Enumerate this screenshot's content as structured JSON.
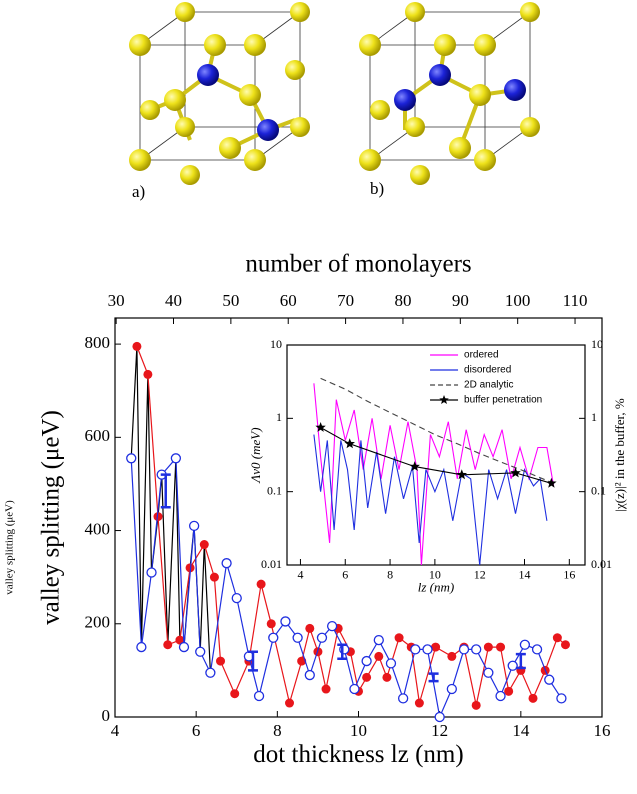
{
  "figure_labels": [
    "a)",
    "b)"
  ],
  "chart_data": [
    {
      "type": "line",
      "xlabel": "dot thickness lz (nm)",
      "ylabel": "valley splitting (μeV)",
      "ylabel_small": "valley splitting (μeV)",
      "x2label": "number of monolayers",
      "xlim": [
        4,
        16
      ],
      "xticks": [
        4,
        6,
        8,
        10,
        12,
        14,
        16
      ],
      "ylim": [
        0,
        856
      ],
      "yticks": [
        0,
        200,
        400,
        600,
        800
      ],
      "x2lim": [
        29.8,
        114.7
      ],
      "x2ticks": [
        30,
        40,
        50,
        60,
        70,
        80,
        90,
        100,
        110
      ],
      "series": [
        {
          "color": "#000000",
          "marker": "none",
          "x": [
            4.4,
            4.54,
            4.65,
            4.81,
            4.9,
            5.06,
            5.15,
            5.3,
            5.5,
            5.6,
            5.7,
            5.85,
            5.95,
            6.1,
            6.2,
            6.35
          ],
          "values": [
            555,
            795,
            150,
            735,
            310,
            430,
            520,
            155,
            555,
            165,
            150,
            320,
            410,
            140,
            370,
            95
          ]
        },
        {
          "color": "#e8161b",
          "marker": "filled",
          "x": [
            4.54,
            4.81,
            5.06,
            5.3,
            5.6,
            5.85,
            6.2,
            6.45,
            6.6,
            6.95,
            7.3,
            7.6,
            7.85,
            8.3,
            8.6,
            8.8,
            9.0,
            9.2,
            9.5,
            9.8,
            10.0,
            10.2,
            10.5,
            10.7,
            11.0,
            11.3,
            11.5,
            11.9,
            12.3,
            12.6,
            12.9,
            13.2,
            13.5,
            13.7,
            14.0,
            14.3,
            14.6,
            14.9,
            15.1
          ],
          "values": [
            795,
            735,
            430,
            155,
            165,
            320,
            370,
            300,
            120,
            50,
            120,
            285,
            200,
            30,
            120,
            190,
            140,
            60,
            190,
            140,
            55,
            85,
            130,
            85,
            170,
            150,
            30,
            150,
            130,
            150,
            25,
            150,
            150,
            55,
            100,
            40,
            100,
            170,
            155
          ]
        },
        {
          "color": "#1f2fe0",
          "marker": "open",
          "x": [
            4.4,
            4.65,
            4.9,
            5.15,
            5.5,
            5.7,
            5.95,
            6.1,
            6.35,
            6.75,
            7.0,
            7.3,
            7.55,
            7.9,
            8.2,
            8.5,
            8.8,
            9.1,
            9.35,
            9.65,
            9.9,
            10.2,
            10.5,
            10.8,
            11.1,
            11.4,
            11.7,
            12.0,
            12.3,
            12.6,
            12.9,
            13.2,
            13.5,
            13.8,
            14.1,
            14.4,
            14.7,
            15.0
          ],
          "values": [
            555,
            150,
            310,
            520,
            555,
            150,
            410,
            140,
            95,
            330,
            255,
            130,
            45,
            170,
            205,
            170,
            90,
            170,
            195,
            145,
            60,
            120,
            165,
            115,
            40,
            145,
            145,
            0,
            60,
            145,
            145,
            95,
            45,
            110,
            155,
            145,
            80,
            40
          ]
        }
      ],
      "error_bars": {
        "color": "#1f2fe0",
        "x": [
          5.25,
          7.4,
          9.6,
          11.85,
          14.0
        ],
        "values": [
          485,
          120,
          140,
          85,
          120
        ],
        "errors": [
          35,
          20,
          15,
          8,
          15
        ]
      }
    },
    {
      "type": "line",
      "xlabel": "lz (nm)",
      "ylabel": "Λv0 (meV)",
      "y2label": "|χ(z)|² in the buffer, %",
      "log_y": true,
      "legend": "upper-right",
      "xlim": [
        3.4,
        16.7
      ],
      "xticks": [
        4,
        6,
        8,
        10,
        12,
        14,
        16
      ],
      "ylim": [
        0.01,
        10
      ],
      "yticks": [
        0.01,
        0.1,
        1,
        10
      ],
      "y2lim": [
        0.01,
        10
      ],
      "y2ticks": [
        0.01,
        0.1,
        1,
        10
      ],
      "series": [
        {
          "name": "ordered",
          "color": "#ff00ff",
          "dash": false,
          "marker": "none",
          "x": [
            4.6,
            4.9,
            5.3,
            5.6,
            6.0,
            6.4,
            6.8,
            7.2,
            7.6,
            8.0,
            8.4,
            8.8,
            9.2,
            9.4,
            9.8,
            10.2,
            10.6,
            11.0,
            11.4,
            11.8,
            12.2,
            12.6,
            13.0,
            13.4,
            13.8,
            14.2,
            14.6,
            15.0,
            15.3
          ],
          "values": [
            3,
            0.3,
            0.02,
            1.8,
            0.5,
            1.3,
            0.2,
            1.0,
            0.15,
            0.8,
            0.2,
            0.9,
            0.2,
            0.01,
            0.6,
            0.3,
            0.9,
            0.15,
            0.7,
            0.2,
            0.6,
            0.3,
            0.7,
            0.15,
            0.4,
            0.15,
            0.4,
            0.4,
            0.12
          ]
        },
        {
          "name": "disordered",
          "color": "#1f2fe0",
          "dash": false,
          "marker": "none",
          "x": [
            4.6,
            4.9,
            5.2,
            5.5,
            5.8,
            6.1,
            6.4,
            6.7,
            7.0,
            7.4,
            7.8,
            8.2,
            8.6,
            9.0,
            9.3,
            9.6,
            10.0,
            10.4,
            10.8,
            11.2,
            11.6,
            12.0,
            12.4,
            12.8,
            13.2,
            13.6,
            14.0,
            14.4,
            14.7,
            15.0
          ],
          "values": [
            0.6,
            0.1,
            0.5,
            0.03,
            0.5,
            0.2,
            0.03,
            0.5,
            0.06,
            0.35,
            0.05,
            0.3,
            0.08,
            0.22,
            0.02,
            0.2,
            0.1,
            0.2,
            0.04,
            0.18,
            0.15,
            0.01,
            0.2,
            0.08,
            0.2,
            0.05,
            0.2,
            0.12,
            0.15,
            0.04
          ]
        },
        {
          "name": "2D analytic",
          "color": "#444444",
          "dash": true,
          "marker": "none",
          "x": [
            4.9,
            6,
            7,
            8,
            9,
            10,
            11,
            12,
            13,
            14,
            15.3
          ],
          "values": [
            3.5,
            2.5,
            1.7,
            1.2,
            0.85,
            0.6,
            0.45,
            0.33,
            0.25,
            0.19,
            0.13
          ]
        },
        {
          "name": "buffer penetration",
          "color": "#000000",
          "dash": false,
          "marker": "star",
          "x": [
            4.9,
            6.2,
            9.1,
            11.2,
            13.6,
            15.2
          ],
          "values": [
            0.75,
            0.45,
            0.22,
            0.17,
            0.18,
            0.13
          ]
        }
      ]
    }
  ]
}
